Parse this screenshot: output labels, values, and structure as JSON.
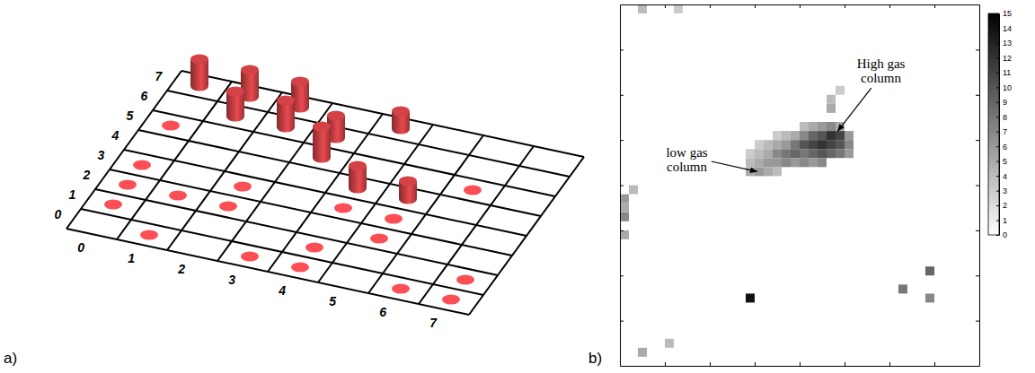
{
  "chart_data": [
    {
      "type": "bar3d",
      "label": "a)",
      "color": "#ea4a4f",
      "grid": true,
      "xlim": [
        -0.5,
        7.5
      ],
      "ylim": [
        -0.5,
        7.5
      ],
      "xticks": [
        0,
        1,
        2,
        3,
        4,
        5,
        6,
        7
      ],
      "yticks": [
        0,
        1,
        2,
        3,
        4,
        5,
        6,
        7
      ],
      "x": [
        0,
        0,
        0,
        0,
        1,
        2,
        1,
        2,
        3,
        4,
        4,
        4,
        5,
        5,
        6,
        6,
        7,
        7,
        0,
        1,
        2,
        1,
        2,
        3,
        3,
        4,
        4,
        5
      ],
      "y": [
        5,
        3,
        2,
        1,
        0,
        3,
        2,
        2,
        0,
        0,
        1,
        3,
        2,
        3,
        5,
        0,
        1,
        0,
        7,
        7,
        7,
        6,
        6,
        6,
        5,
        7,
        4,
        4
      ],
      "values": [
        0,
        0,
        0,
        0,
        0,
        0,
        0,
        0,
        0,
        0,
        0,
        0,
        0,
        0,
        0,
        0,
        0,
        0,
        3.0,
        3.0,
        2.9,
        2.8,
        3.0,
        2.5,
        3.5,
        2.0,
        2.5,
        2.0
      ]
    },
    {
      "type": "heatmap",
      "label": "b)",
      "tick_labels": false,
      "xlim": [
        0,
        8
      ],
      "ylim": [
        0,
        8
      ],
      "xticks": [
        1,
        2,
        3,
        4,
        5,
        6,
        7
      ],
      "yticks": [
        1,
        2,
        3,
        4,
        5,
        6,
        7
      ],
      "cells": {
        "x": [
          2.9,
          2.9,
          2.9,
          3.1,
          3.1,
          3.1,
          3.1,
          3.3,
          3.3,
          3.3,
          3.3,
          3.5,
          3.5,
          3.5,
          3.5,
          3.5,
          3.7,
          3.7,
          3.7,
          3.7,
          3.9,
          3.9,
          3.9,
          3.9,
          4.1,
          4.1,
          4.1,
          4.1,
          4.3,
          4.3,
          4.3,
          4.3,
          4.5,
          4.5,
          4.5,
          4.5,
          4.7,
          4.7,
          4.7,
          4.9,
          4.9,
          4.9,
          5.1,
          5.1,
          5.1,
          4.1,
          4.3,
          4.5,
          4.7,
          4.9,
          4.7,
          4.7,
          4.9,
          0.1,
          0.1,
          0.1,
          0.1,
          0.3,
          0.5,
          1.3,
          0.5,
          1.1,
          2.9,
          6.3,
          6.9,
          6.9
        ],
        "y": [
          4.3,
          4.5,
          4.7,
          4.3,
          4.5,
          4.7,
          4.9,
          4.3,
          4.5,
          4.7,
          4.9,
          4.3,
          4.5,
          4.7,
          4.9,
          5.1,
          4.5,
          4.7,
          4.9,
          5.1,
          4.5,
          4.7,
          4.9,
          5.1,
          4.5,
          4.7,
          4.9,
          5.1,
          4.5,
          4.7,
          4.9,
          5.1,
          4.5,
          4.7,
          4.9,
          5.1,
          4.7,
          4.9,
          5.1,
          4.7,
          4.9,
          5.1,
          4.7,
          4.9,
          5.1,
          5.3,
          5.3,
          5.3,
          5.3,
          5.3,
          5.7,
          5.9,
          6.1,
          3.7,
          3.5,
          3.3,
          2.9,
          3.9,
          7.9,
          7.9,
          0.3,
          0.5,
          1.5,
          1.7,
          2.1,
          1.5
        ],
        "values": [
          5,
          4,
          3,
          6,
          5,
          4,
          3,
          5,
          6,
          5,
          4,
          4,
          6,
          7,
          5,
          3,
          7,
          8,
          6,
          4,
          6,
          9,
          8,
          5,
          7,
          8,
          10,
          7,
          6,
          9,
          11,
          9,
          7,
          10,
          12,
          10,
          9,
          11,
          12,
          8,
          10,
          11,
          6,
          7,
          6,
          4,
          5,
          6,
          7,
          5,
          5,
          4,
          3,
          6,
          5,
          7,
          5,
          4,
          4,
          3,
          5,
          4,
          14,
          8,
          9,
          7
        ]
      },
      "colorbar": {
        "lim": [
          0,
          15
        ],
        "ticks": [
          0,
          1,
          2,
          3,
          4,
          5,
          6,
          7,
          8,
          9,
          10,
          11,
          12,
          13,
          14,
          15
        ]
      },
      "annotations": [
        {
          "text": "High gas column",
          "x": 4.85,
          "y": 5.2
        },
        {
          "text": "low gas column",
          "x": 3.05,
          "y": 4.3
        }
      ]
    }
  ]
}
